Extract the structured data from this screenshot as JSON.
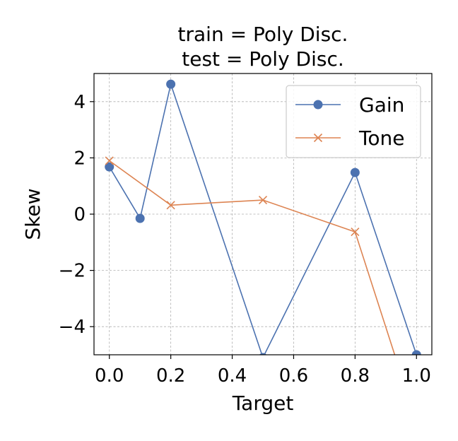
{
  "chart_data": {
    "type": "line",
    "title_lines": [
      "train = Poly Disc.",
      "test = Poly Disc."
    ],
    "xlabel": "Target",
    "ylabel": "Skew",
    "xlim": [
      -0.05,
      1.05
    ],
    "ylim": [
      -5.0,
      5.0
    ],
    "x_ticks": [
      0.0,
      0.2,
      0.4,
      0.6,
      0.8,
      1.0
    ],
    "x_tick_labels": [
      "0.0",
      "0.2",
      "0.4",
      "0.6",
      "0.8",
      "1.0"
    ],
    "y_ticks": [
      -4,
      -2,
      0,
      2,
      4
    ],
    "y_tick_labels": [
      "−4",
      "−2",
      "0",
      "2",
      "4"
    ],
    "grid": true,
    "legend_position": "top-right",
    "series": [
      {
        "name": "Gain",
        "color": "#4c72b0",
        "marker": "circle",
        "x": [
          0.0,
          0.1,
          0.2,
          0.5,
          0.8,
          1.0
        ],
        "y": [
          1.68,
          -0.15,
          4.62,
          -5.1,
          1.48,
          -5.0
        ]
      },
      {
        "name": "Tone",
        "color": "#dd8452",
        "marker": "x",
        "x": [
          0.0,
          0.2,
          0.5,
          0.8,
          1.0
        ],
        "y": [
          1.9,
          0.32,
          0.5,
          -0.63,
          -7.4
        ]
      }
    ]
  }
}
